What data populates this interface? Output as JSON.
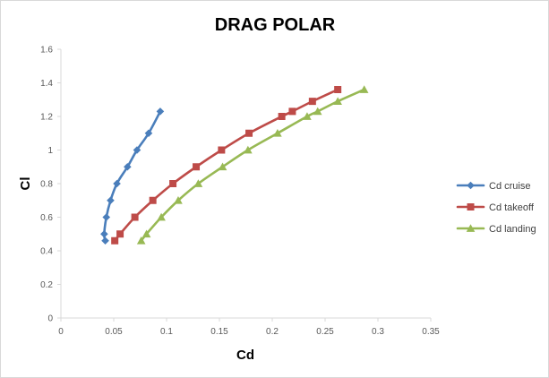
{
  "chart_data": {
    "type": "scatter",
    "title": "DRAG POLAR",
    "xlabel": "Cd",
    "ylabel": "Cl",
    "xlim": [
      0,
      0.35
    ],
    "ylim": [
      0,
      1.6
    ],
    "x_ticks": [
      "0",
      "0.05",
      "0.1",
      "0.15",
      "0.2",
      "0.25",
      "0.3",
      "0.35"
    ],
    "y_ticks": [
      "0",
      "0.2",
      "0.4",
      "0.6",
      "0.8",
      "1",
      "1.2",
      "1.4",
      "1.6"
    ],
    "grid": false,
    "legend_position": "right",
    "series": [
      {
        "name": "Cd cruise",
        "color": "#4a7ebb",
        "marker": "diamond",
        "points": [
          [
            0.042,
            0.46
          ],
          [
            0.041,
            0.5
          ],
          [
            0.043,
            0.6
          ],
          [
            0.047,
            0.7
          ],
          [
            0.053,
            0.8
          ],
          [
            0.063,
            0.9
          ],
          [
            0.072,
            1.0
          ],
          [
            0.083,
            1.1
          ],
          [
            0.094,
            1.23
          ]
        ]
      },
      {
        "name": "Cd takeoff",
        "color": "#be4b48",
        "marker": "square",
        "points": [
          [
            0.051,
            0.46
          ],
          [
            0.056,
            0.5
          ],
          [
            0.07,
            0.6
          ],
          [
            0.087,
            0.7
          ],
          [
            0.106,
            0.8
          ],
          [
            0.128,
            0.9
          ],
          [
            0.152,
            1.0
          ],
          [
            0.178,
            1.1
          ],
          [
            0.209,
            1.2
          ],
          [
            0.219,
            1.23
          ],
          [
            0.238,
            1.29
          ],
          [
            0.262,
            1.36
          ]
        ]
      },
      {
        "name": "Cd landing",
        "color": "#98b954",
        "marker": "triangle",
        "points": [
          [
            0.076,
            0.46
          ],
          [
            0.081,
            0.5
          ],
          [
            0.095,
            0.6
          ],
          [
            0.111,
            0.7
          ],
          [
            0.13,
            0.8
          ],
          [
            0.153,
            0.9
          ],
          [
            0.177,
            1.0
          ],
          [
            0.205,
            1.1
          ],
          [
            0.233,
            1.2
          ],
          [
            0.243,
            1.23
          ],
          [
            0.262,
            1.29
          ],
          [
            0.287,
            1.36
          ]
        ]
      }
    ]
  }
}
